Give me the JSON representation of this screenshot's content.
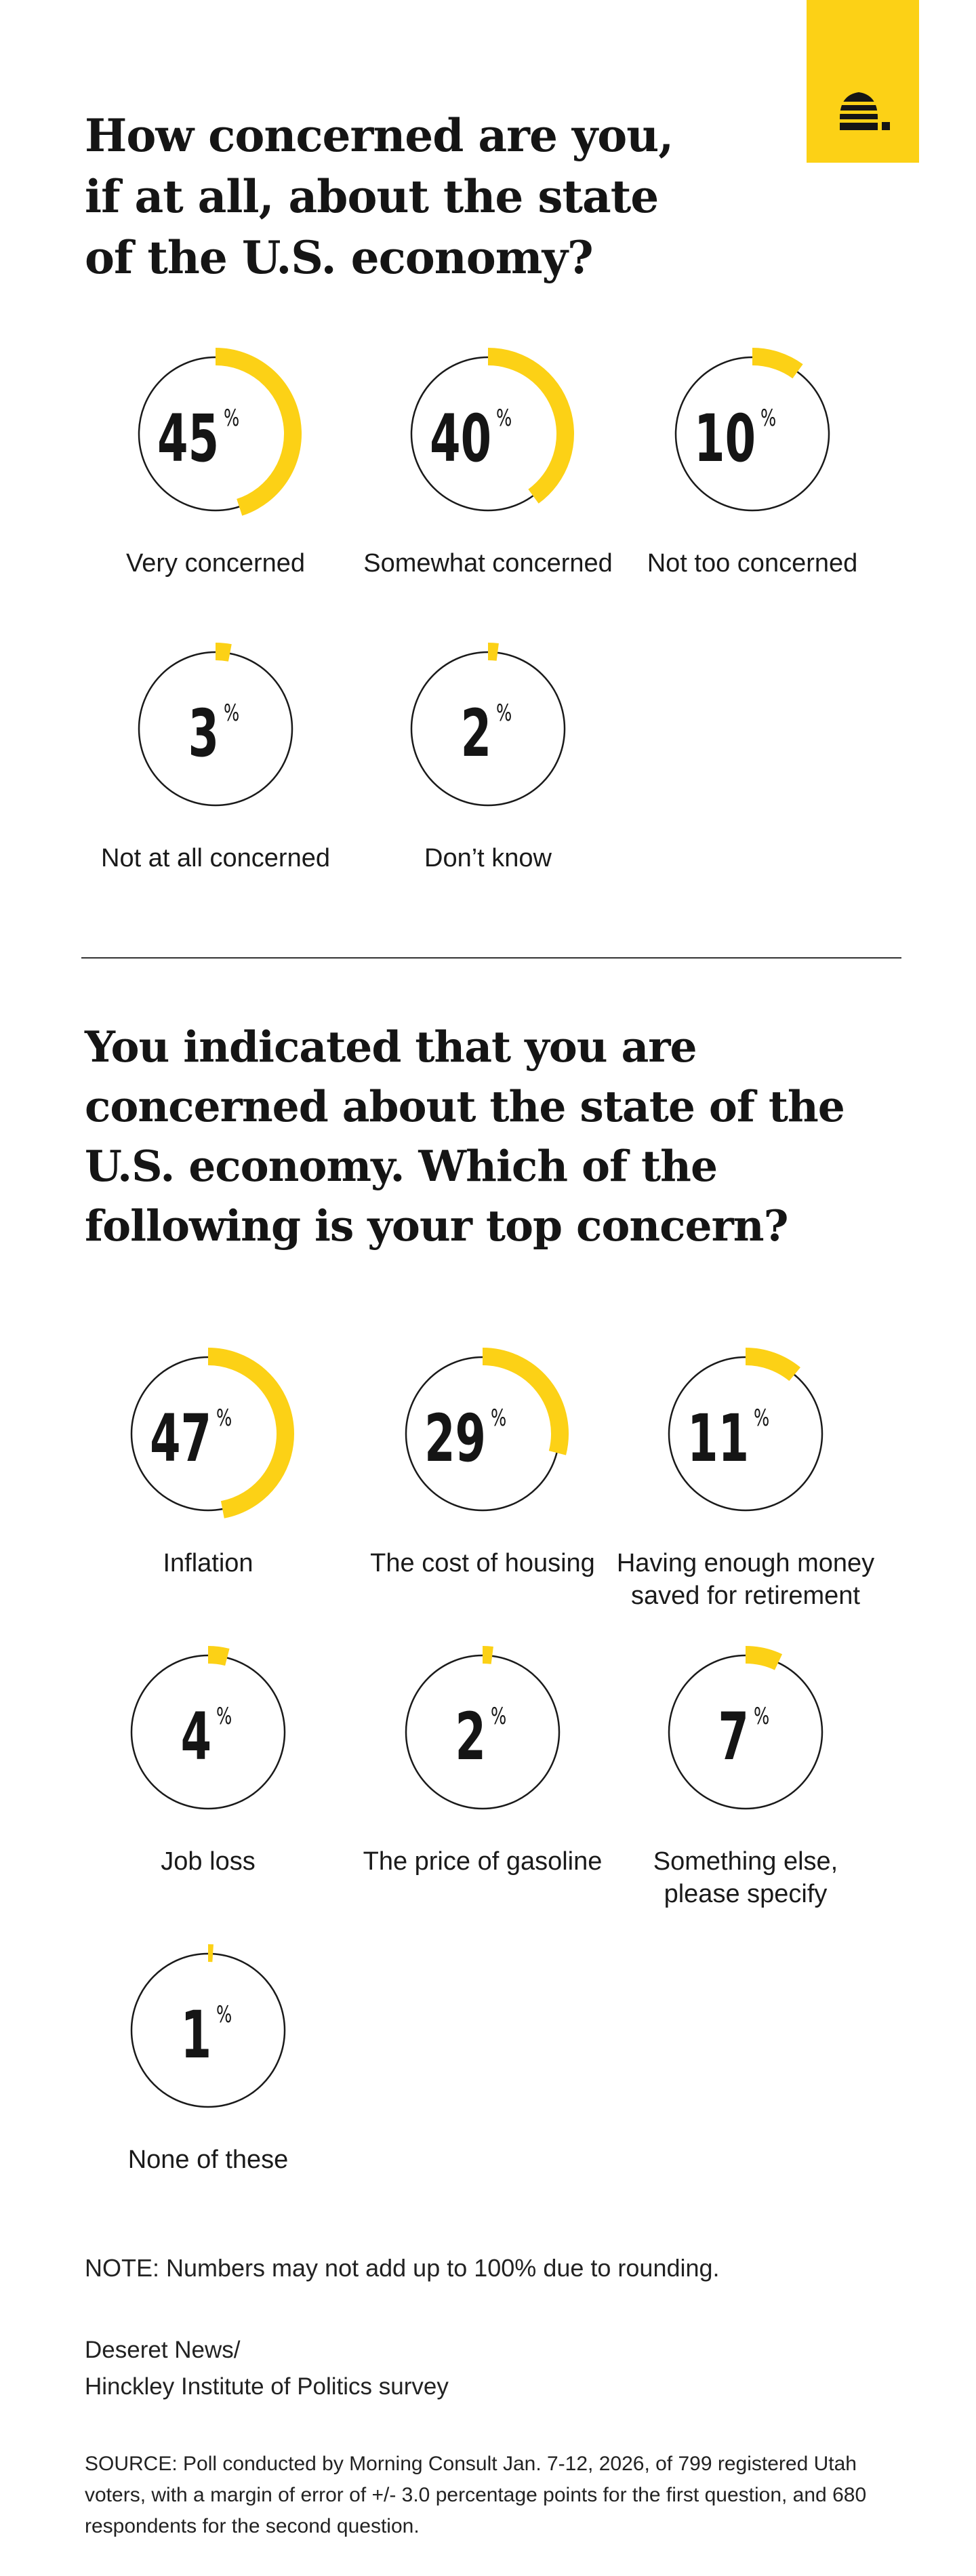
{
  "logo": {
    "name": "beehive-icon",
    "accent": "#fcd116"
  },
  "question1": {
    "title": "How concerned are you, if at all, about the state of the U.S. economy?"
  },
  "question2": {
    "title": "You indicated that you are concerned about the state of the U.S. economy. Which of the following is your top concern?"
  },
  "note": "NOTE: Numbers may not add up to 100% due to rounding.",
  "credit": {
    "line1": "Deseret News/",
    "line2": "Hinckley Institute of Politics survey"
  },
  "source": "SOURCE: Poll conducted by Morning Consult Jan. 7-12, 2026, of 799 registered Utah voters, with a margin of error of +/- 3.0 percentage points for the first question, and 680 respondents for the second question.",
  "chart_data": [
    {
      "type": "pie",
      "title": "How concerned are you, if at all, about the state of the U.S. economy?",
      "unit": "%",
      "colors": {
        "arc": "#fcd116",
        "ring": "#1a1a1a"
      },
      "categories": [
        "Very concerned",
        "Somewhat concerned",
        "Not too concerned",
        "Not at all concerned",
        "Don’t know"
      ],
      "values": [
        45,
        40,
        10,
        3,
        2
      ]
    },
    {
      "type": "pie",
      "title": "You indicated that you are concerned about the state of the U.S. economy. Which of the following is your top concern?",
      "unit": "%",
      "colors": {
        "arc": "#fcd116",
        "ring": "#1a1a1a"
      },
      "categories": [
        "Inflation",
        "The cost of housing",
        "Having enough money saved for retirement",
        "Job loss",
        "The price of gasoline",
        "Something else, please specify",
        "None of these"
      ],
      "label_lines": [
        [
          "Inflation"
        ],
        [
          "The cost of housing"
        ],
        [
          "Having enough money",
          "saved for retirement"
        ],
        [
          "Job loss"
        ],
        [
          "The price of gasoline"
        ],
        [
          "Something else,",
          "please specify"
        ],
        [
          "None of these"
        ]
      ],
      "values": [
        47,
        29,
        11,
        4,
        2,
        7,
        1
      ]
    }
  ]
}
